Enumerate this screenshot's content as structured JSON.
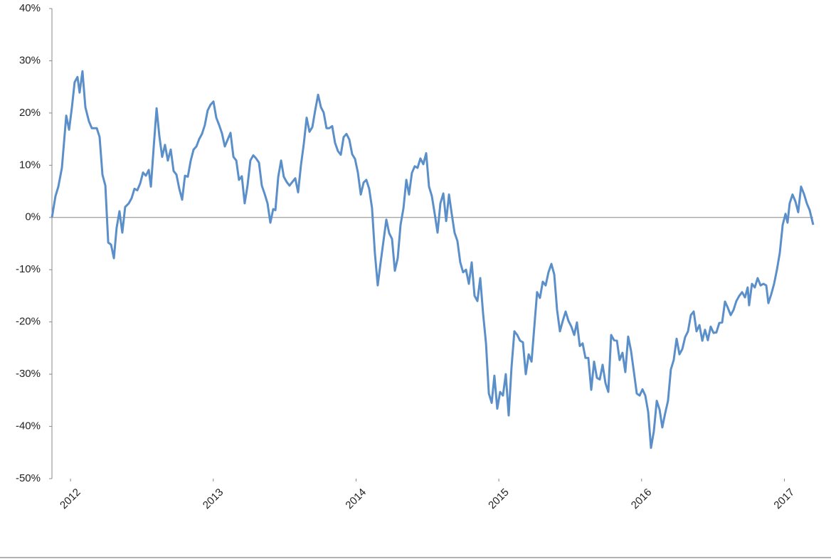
{
  "chart_data": {
    "type": "line",
    "color": "#5b8fc9",
    "x": [
      2011.87,
      2011.895,
      2011.915,
      2011.94,
      2011.97,
      2011.99,
      2012.01,
      2012.029,
      2012.049,
      2012.064,
      2012.084,
      2012.104,
      2012.129,
      2012.149,
      2012.184,
      2012.204,
      2012.224,
      2012.244,
      2012.264,
      2012.284,
      2012.304,
      2012.323,
      2012.343,
      2012.363,
      2012.383,
      2012.408,
      2012.428,
      2012.448,
      2012.468,
      2012.488,
      2012.508,
      2012.528,
      2012.548,
      2012.563,
      2012.583,
      2012.603,
      2012.622,
      2012.642,
      2012.662,
      2012.682,
      2012.702,
      2012.722,
      2012.742,
      2012.762,
      2012.782,
      2012.802,
      2012.822,
      2012.842,
      2012.862,
      2012.882,
      2012.901,
      2012.921,
      2012.941,
      2012.961,
      2012.981,
      2013.001,
      2013.021,
      2013.041,
      2013.061,
      2013.081,
      2013.101,
      2013.121,
      2013.141,
      2013.161,
      2013.18,
      2013.2,
      2013.22,
      2013.24,
      2013.26,
      2013.28,
      2013.3,
      2013.32,
      2013.34,
      2013.36,
      2013.38,
      2013.4,
      2013.42,
      2013.435,
      2013.455,
      2013.475,
      2013.494,
      2013.514,
      2013.534,
      2013.554,
      2013.574,
      2013.594,
      2013.614,
      2013.634,
      2013.654,
      2013.674,
      2013.694,
      2013.714,
      2013.734,
      2013.754,
      2013.773,
      2013.793,
      2013.813,
      2013.833,
      2013.853,
      2013.873,
      2013.893,
      2013.913,
      2013.933,
      2013.953,
      2013.973,
      2013.993,
      2014.013,
      2014.033,
      2014.053,
      2014.072,
      2014.092,
      2014.112,
      2014.132,
      2014.152,
      2014.172,
      2014.192,
      2014.212,
      2014.232,
      2014.252,
      2014.272,
      2014.292,
      2014.312,
      2014.332,
      2014.352,
      2014.371,
      2014.391,
      2014.411,
      2014.431,
      2014.451,
      2014.471,
      2014.491,
      2014.511,
      2014.531,
      2014.551,
      2014.571,
      2014.591,
      2014.611,
      2014.631,
      2014.651,
      2014.67,
      2014.69,
      2014.71,
      2014.73,
      2014.75,
      2014.77,
      2014.79,
      2014.81,
      2014.83,
      2014.85,
      2014.87,
      2014.89,
      2014.91,
      2014.93,
      2014.95,
      2014.969,
      2014.989,
      2015.009,
      2015.029,
      2015.049,
      2015.069,
      2015.089,
      2015.109,
      2015.129,
      2015.149,
      2015.169,
      2015.189,
      2015.209,
      2015.229,
      2015.248,
      2015.268,
      2015.288,
      2015.308,
      2015.328,
      2015.348,
      2015.368,
      2015.388,
      2015.408,
      2015.428,
      2015.448,
      2015.468,
      2015.488,
      2015.508,
      2015.528,
      2015.547,
      2015.567,
      2015.587,
      2015.607,
      2015.627,
      2015.647,
      2015.667,
      2015.687,
      2015.707,
      2015.727,
      2015.747,
      2015.767,
      2015.787,
      2015.807,
      2015.827,
      2015.846,
      2015.866,
      2015.886,
      2015.906,
      2015.926,
      2015.946,
      2015.966,
      2015.986,
      2016.006,
      2016.026,
      2016.046,
      2016.066,
      2016.086,
      2016.106,
      2016.126,
      2016.145,
      2016.165,
      2016.185,
      2016.205,
      2016.225,
      2016.245,
      2016.265,
      2016.285,
      2016.305,
      2016.325,
      2016.345,
      2016.365,
      2016.385,
      2016.405,
      2016.425,
      2016.444,
      2016.464,
      2016.484,
      2016.504,
      2016.524,
      2016.544,
      2016.564,
      2016.584,
      2016.604,
      2016.624,
      2016.644,
      2016.664,
      2016.684,
      2016.704,
      2016.724,
      2016.743,
      2016.753,
      2016.773,
      2016.793,
      2016.813,
      2016.833,
      2016.853,
      2016.873,
      2016.888,
      2016.908,
      2016.928,
      2016.948,
      2016.968,
      2016.988,
      2017.008,
      2017.022,
      2017.037,
      2017.057,
      2017.077,
      2017.097,
      2017.117,
      2017.137,
      2017.157,
      2017.177,
      2017.202
    ],
    "values": [
      0,
      4.1,
      5.9,
      9.5,
      19.5,
      16.8,
      21.1,
      25.9,
      26.9,
      23.9,
      28.0,
      21.1,
      18.4,
      17.1,
      17.1,
      15.4,
      8.2,
      6.1,
      -4.8,
      -5.2,
      -7.8,
      -2.0,
      1.2,
      -2.9,
      2.0,
      2.7,
      3.7,
      5.5,
      5.2,
      6.5,
      8.6,
      8.0,
      9.1,
      5.9,
      13.6,
      20.9,
      15.7,
      11.6,
      13.9,
      10.9,
      13.0,
      8.9,
      8.2,
      5.5,
      3.4,
      8.0,
      7.8,
      10.9,
      13.0,
      13.6,
      15.0,
      16.0,
      17.7,
      20.5,
      21.6,
      22.2,
      19.1,
      17.7,
      16.1,
      13.6,
      14.9,
      16.2,
      11.6,
      10.9,
      7.2,
      7.9,
      2.7,
      6.1,
      10.9,
      11.9,
      11.3,
      10.5,
      6.1,
      4.5,
      2.7,
      -1.0,
      1.6,
      1.4,
      7.8,
      10.9,
      7.8,
      6.8,
      6.1,
      6.8,
      7.5,
      4.8,
      10.0,
      14.1,
      19.1,
      16.4,
      17.3,
      20.5,
      23.5,
      21.1,
      20.1,
      17.1,
      17.1,
      17.5,
      14.3,
      12.7,
      12.0,
      15.4,
      16.0,
      14.9,
      12.1,
      11.2,
      8.6,
      4.4,
      6.7,
      7.2,
      5.5,
      1.8,
      -6.8,
      -13.0,
      -8.6,
      -4.5,
      -0.4,
      -3.0,
      -4.1,
      -10.2,
      -7.8,
      -1.4,
      1.8,
      7.2,
      4.4,
      8.5,
      9.8,
      9.5,
      11.3,
      10.2,
      12.3,
      5.9,
      4.1,
      0.7,
      -2.9,
      2.7,
      4.6,
      -0.7,
      4.4,
      0.7,
      -2.9,
      -4.5,
      -8.6,
      -10.5,
      -10.0,
      -12.7,
      -8.6,
      -15.0,
      -16.0,
      -11.6,
      -18.4,
      -24.1,
      -33.7,
      -35.5,
      -30.3,
      -36.6,
      -33.4,
      -34.1,
      -30.0,
      -37.9,
      -28.6,
      -21.8,
      -22.5,
      -23.6,
      -23.9,
      -30.0,
      -26.2,
      -27.6,
      -21.1,
      -14.3,
      -15.4,
      -12.3,
      -13.0,
      -10.5,
      -8.9,
      -10.9,
      -17.7,
      -21.8,
      -19.8,
      -18.0,
      -19.8,
      -20.9,
      -22.5,
      -20.1,
      -24.6,
      -24.1,
      -26.9,
      -26.9,
      -33.0,
      -27.6,
      -30.7,
      -31.0,
      -28.2,
      -31.7,
      -33.4,
      -22.5,
      -23.5,
      -23.6,
      -27.3,
      -25.9,
      -29.6,
      -22.8,
      -25.5,
      -29.6,
      -33.7,
      -34.1,
      -32.9,
      -34.1,
      -37.2,
      -44.1,
      -40.9,
      -35.1,
      -36.8,
      -40.2,
      -37.5,
      -35.1,
      -29.1,
      -27.3,
      -23.2,
      -26.2,
      -25.2,
      -22.9,
      -21.8,
      -18.7,
      -18.0,
      -21.8,
      -20.6,
      -23.6,
      -21.5,
      -23.5,
      -20.9,
      -22.1,
      -22.0,
      -20.2,
      -20.1,
      -16.1,
      -17.3,
      -18.7,
      -17.7,
      -16.0,
      -15.0,
      -14.3,
      -15.3,
      -13.4,
      -16.8,
      -12.7,
      -13.4,
      -11.6,
      -13.0,
      -12.7,
      -13.0,
      -16.4,
      -14.7,
      -12.7,
      -10.0,
      -6.8,
      -1.4,
      0.7,
      -1.0,
      2.7,
      4.4,
      3.1,
      1.0,
      5.9,
      4.5,
      2.7,
      1.4,
      -1.4
    ],
    "xlim": [
      2011.87,
      2017.202
    ],
    "xticks": [
      2012,
      2013,
      2014,
      2015,
      2016,
      2017
    ],
    "ylim": [
      -50,
      40
    ],
    "yticks": [
      {
        "value": -50,
        "label": "-50%"
      },
      {
        "value": -40,
        "label": "-40%"
      },
      {
        "value": -30,
        "label": "-30%"
      },
      {
        "value": -20,
        "label": "-20%"
      },
      {
        "value": -10,
        "label": "-10%"
      },
      {
        "value": 0,
        "label": "0%"
      },
      {
        "value": 10,
        "label": "10%"
      },
      {
        "value": 20,
        "label": "20%"
      },
      {
        "value": 30,
        "label": "30%"
      },
      {
        "value": 40,
        "label": "40%"
      }
    ]
  }
}
